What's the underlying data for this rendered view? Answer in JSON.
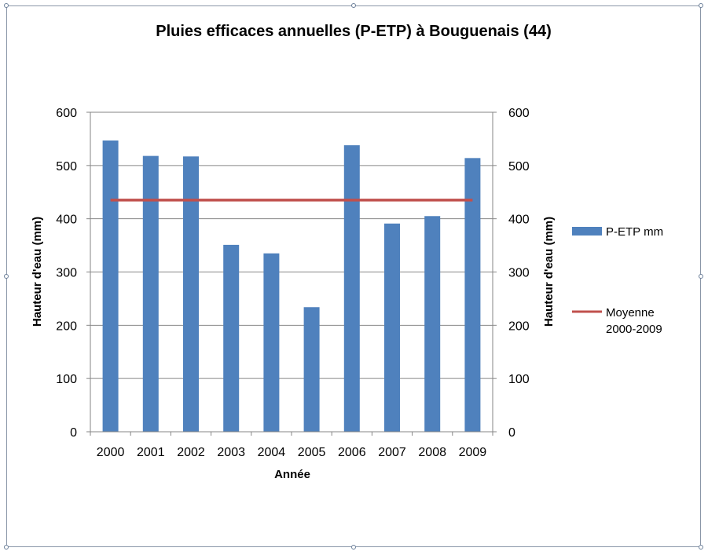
{
  "chart_data": {
    "type": "bar",
    "title": "Pluies efficaces annuelles (P-ETP) à Bouguenais (44)",
    "xlabel": "Année",
    "ylabel": "Hauteur d'eau (mm)",
    "ylabel_right": "Hauteur d'eau (mm)",
    "ylim": [
      0,
      600
    ],
    "yticks": [
      0,
      100,
      200,
      300,
      400,
      500,
      600
    ],
    "categories": [
      "2000",
      "2001",
      "2002",
      "2003",
      "2004",
      "2005",
      "2006",
      "2007",
      "2008",
      "2009"
    ],
    "series": [
      {
        "name": "P-ETP mm",
        "kind": "bar",
        "color": "#4f81bd",
        "values": [
          547,
          518,
          517,
          351,
          335,
          234,
          538,
          391,
          405,
          514
        ]
      },
      {
        "name": "Moyenne 2000-2009",
        "kind": "line",
        "color": "#c0504d",
        "values": [
          435,
          435,
          435,
          435,
          435,
          435,
          435,
          435,
          435,
          435
        ]
      }
    ],
    "grid": true,
    "legend_position": "right"
  }
}
